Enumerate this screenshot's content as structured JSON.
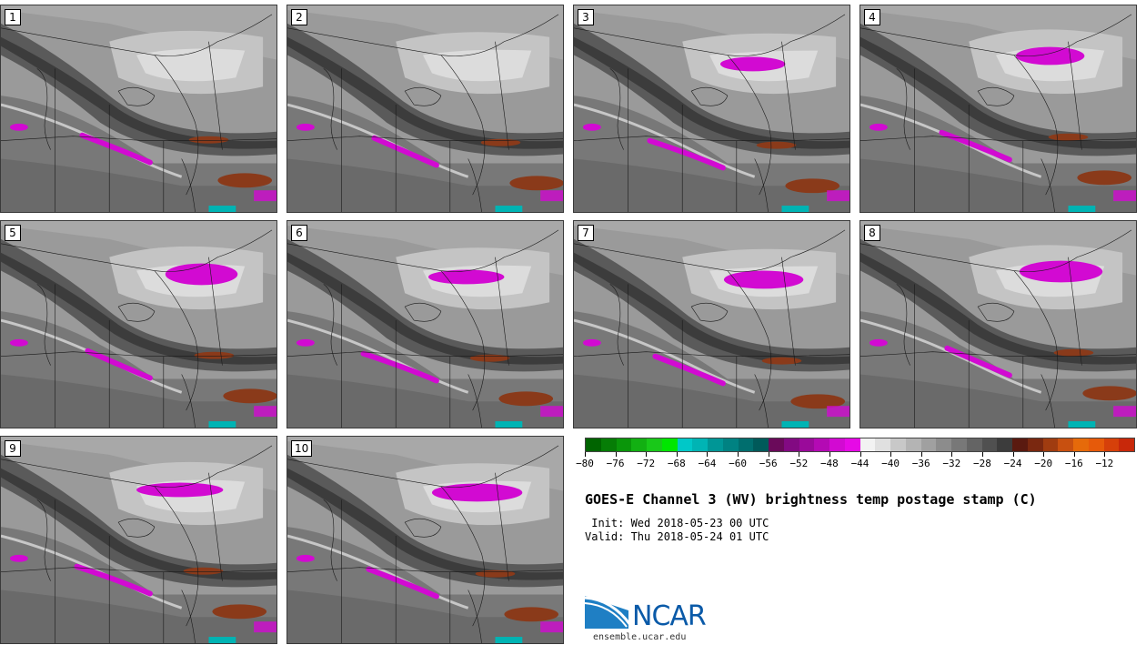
{
  "panels": [
    {
      "label": "1"
    },
    {
      "label": "2"
    },
    {
      "label": "3"
    },
    {
      "label": "4"
    },
    {
      "label": "5"
    },
    {
      "label": "6"
    },
    {
      "label": "7"
    },
    {
      "label": "8"
    },
    {
      "label": "9"
    },
    {
      "label": "10"
    }
  ],
  "colorbar": {
    "colors": [
      "#006400",
      "#067d06",
      "#0a960a",
      "#12b012",
      "#19c819",
      "#00e600",
      "#00c8c8",
      "#00b4b4",
      "#009696",
      "#008282",
      "#006e6e",
      "#005a5a",
      "#6a0a5a",
      "#820a82",
      "#9a0a9a",
      "#b40ab4",
      "#d20ad2",
      "#e60ae6",
      "#f2f2f2",
      "#e0e0e0",
      "#c8c8c8",
      "#b4b4b4",
      "#a0a0a0",
      "#8c8c8c",
      "#787878",
      "#646464",
      "#505050",
      "#3c3c3c",
      "#5a1a10",
      "#7a2810",
      "#a03c10",
      "#c85010",
      "#e66a0a",
      "#e65a0a",
      "#d6400a",
      "#c8280a"
    ],
    "tick_labels": [
      "−80",
      "−76",
      "−72",
      "−68",
      "−64",
      "−60",
      "−56",
      "−52",
      "−48",
      "−44",
      "−40",
      "−36",
      "−32",
      "−28",
      "−24",
      "−20",
      "−16",
      "−12"
    ]
  },
  "title": "GOES-E Channel 3 (WV) brightness temp postage stamp (C)",
  "init_line": " Init: Wed 2018-05-23 00 UTC",
  "valid_line": "Valid: Thu 2018-05-24 01 UTC",
  "logo": {
    "text": "NCAR",
    "name": "ncar-logo"
  },
  "site": "ensemble.ucar.edu"
}
